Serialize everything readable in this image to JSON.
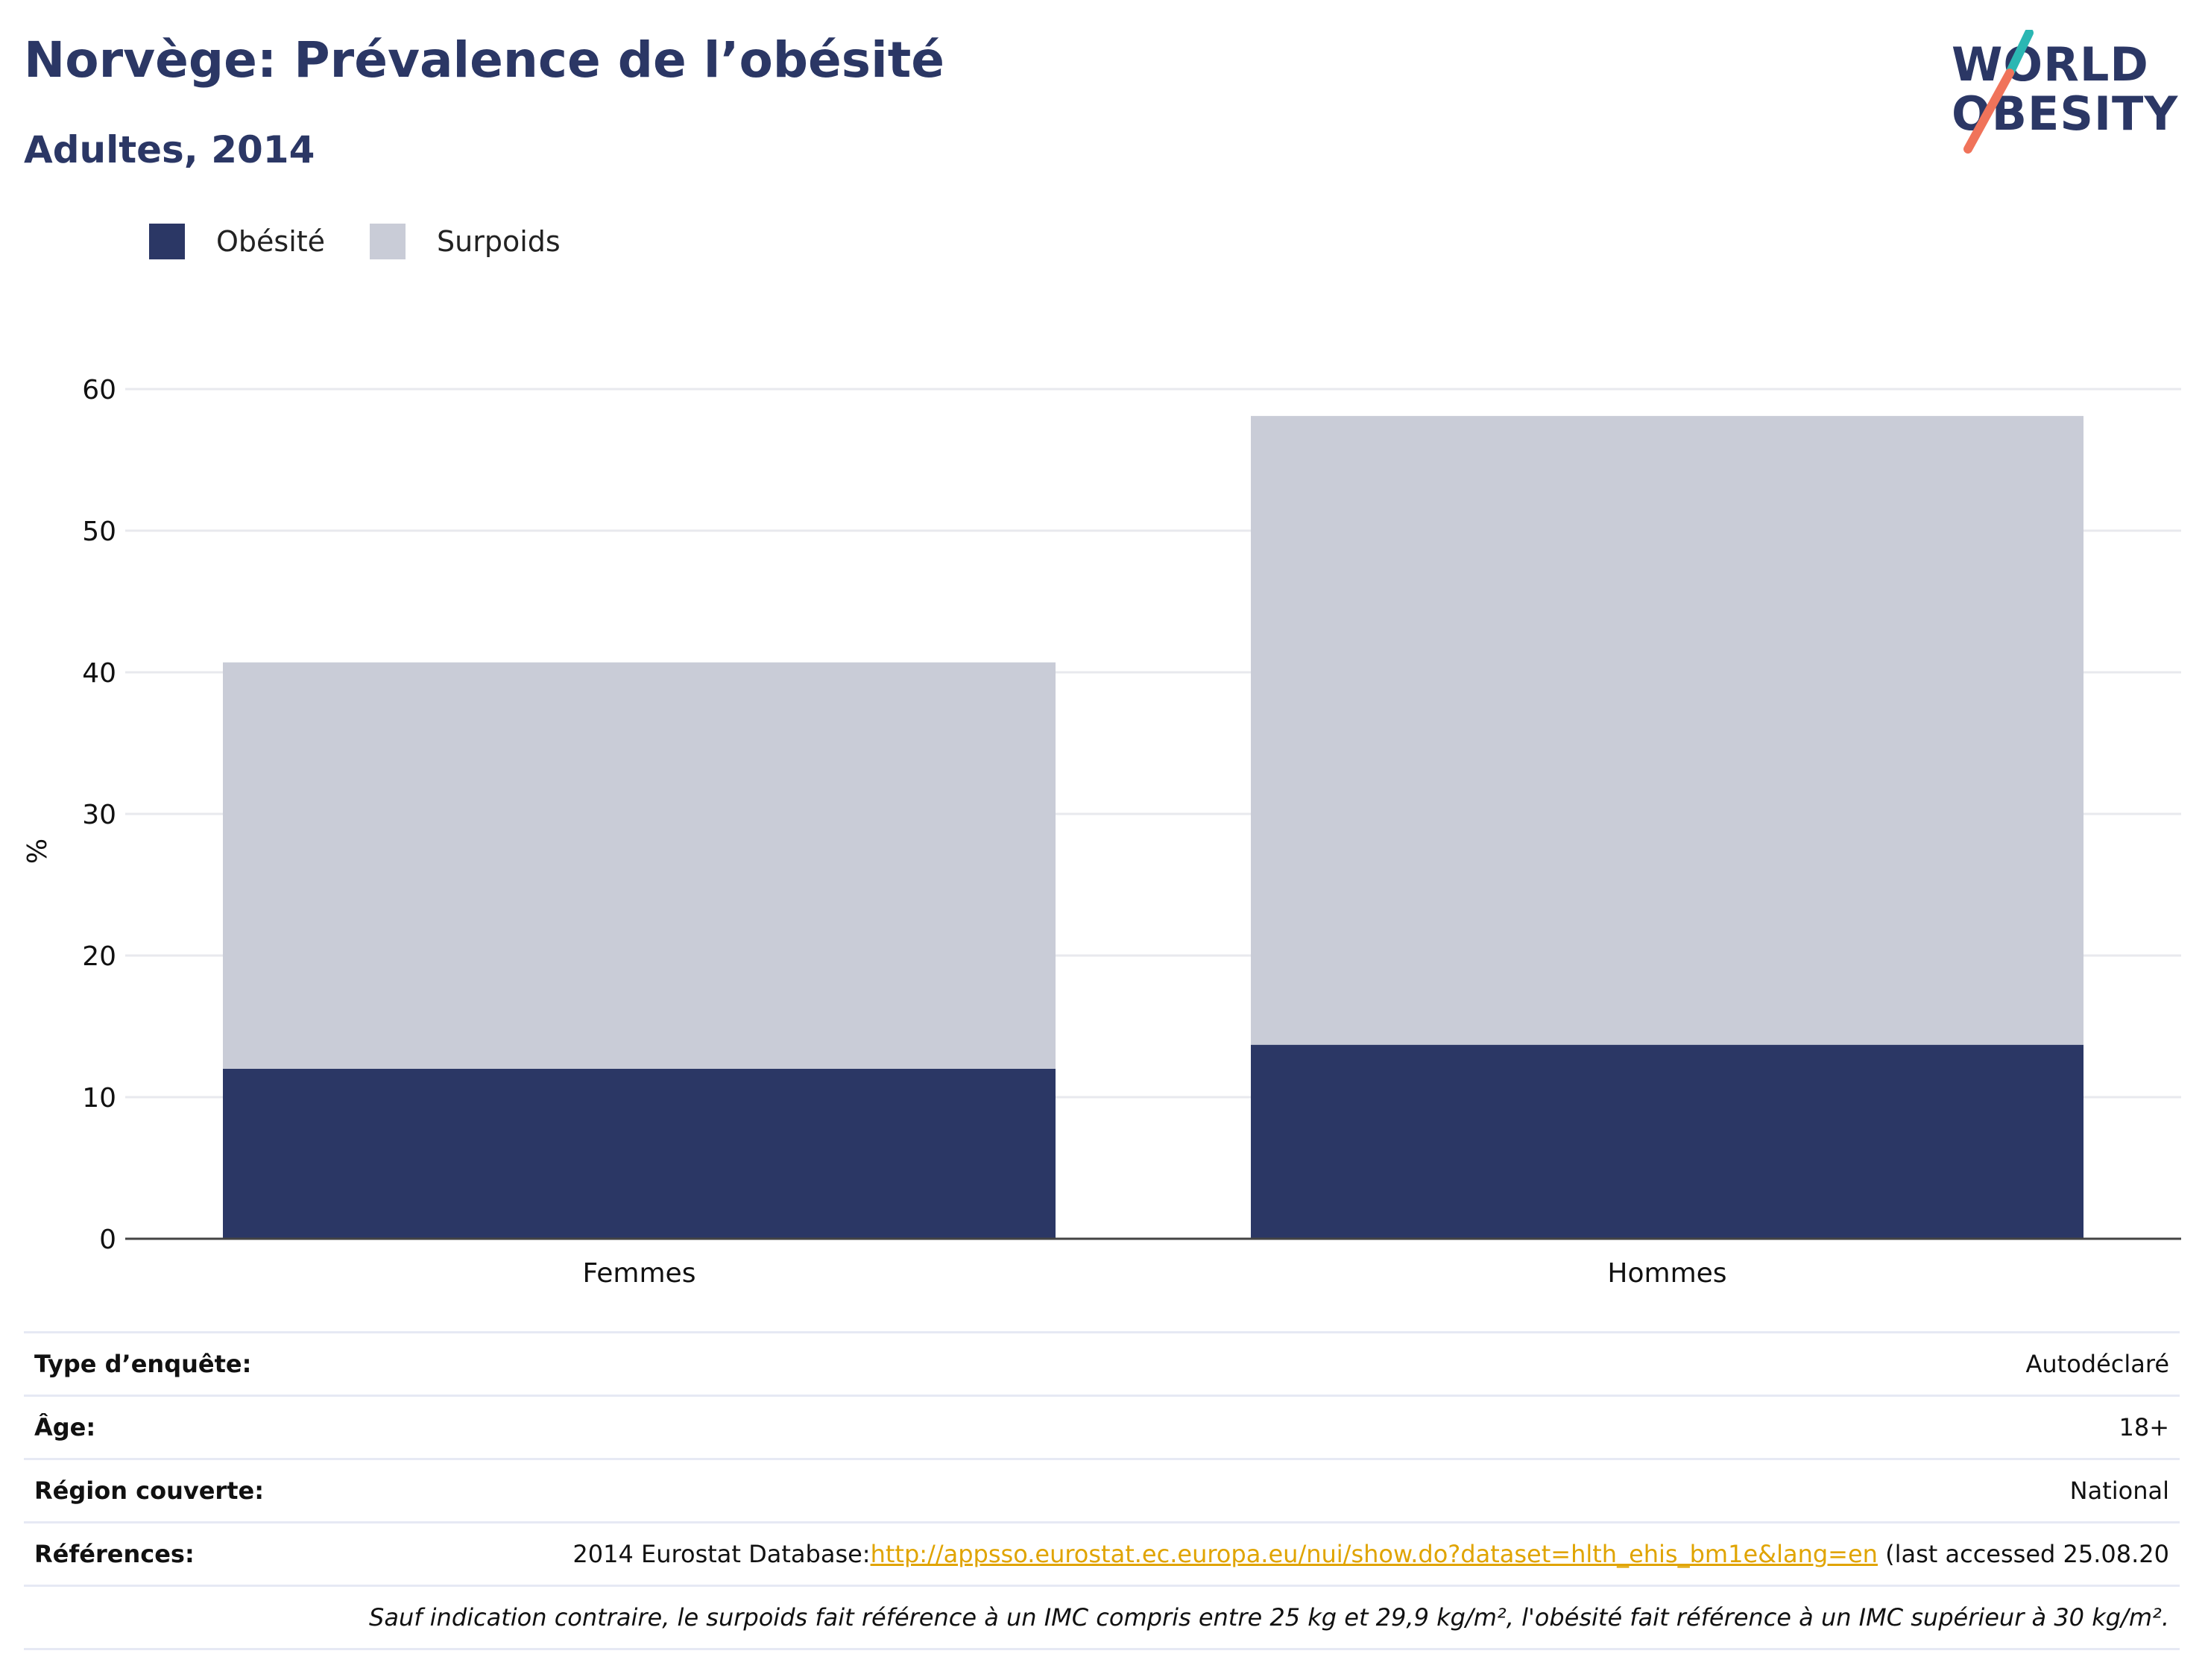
{
  "header": {
    "title": "Norvège: Prévalence de l’obésité",
    "subtitle": "Adultes, 2014",
    "logo_line1": "WORLD",
    "logo_line2": "OBESITY"
  },
  "colors": {
    "obesity": "#2b3765",
    "overweight": "#c9ccd7",
    "logo_slash_teal": "#2bb7b3",
    "logo_slash_coral": "#f0735a",
    "link": "#e0a400"
  },
  "chart_data": {
    "type": "bar",
    "stacked": true,
    "categories": [
      "Femmes",
      "Hommes"
    ],
    "series": [
      {
        "name": "Obésité",
        "values": [
          12.0,
          13.7
        ]
      },
      {
        "name": "Surpoids",
        "values": [
          28.7,
          44.4
        ]
      }
    ],
    "ylabel": "%",
    "xlabel": "",
    "ylim": [
      0,
      60
    ],
    "yticks": [
      0,
      10,
      20,
      30,
      40,
      50,
      60
    ],
    "grid": true,
    "legend_position": "top-left"
  },
  "info": {
    "rows": [
      {
        "label": "Type d’enquête:",
        "value": "Autodéclaré"
      },
      {
        "label": "Âge:",
        "value": "18+"
      },
      {
        "label": "Région couverte:",
        "value": "National"
      }
    ],
    "references_label": "Références:",
    "references_prefix": "2014 Eurostat Database:",
    "references_link": "http://appsso.eurostat.ec.europa.eu/nui/show.do?dataset=hlth_ehis_bm1e&lang=en",
    "references_suffix": " (last accessed 25.08.20",
    "footnote": "Sauf indication contraire, le surpoids fait référence à un IMC compris entre 25 kg et 29,9 kg/m², l'obésité fait référence à un IMC supérieur à 30 kg/m²."
  }
}
